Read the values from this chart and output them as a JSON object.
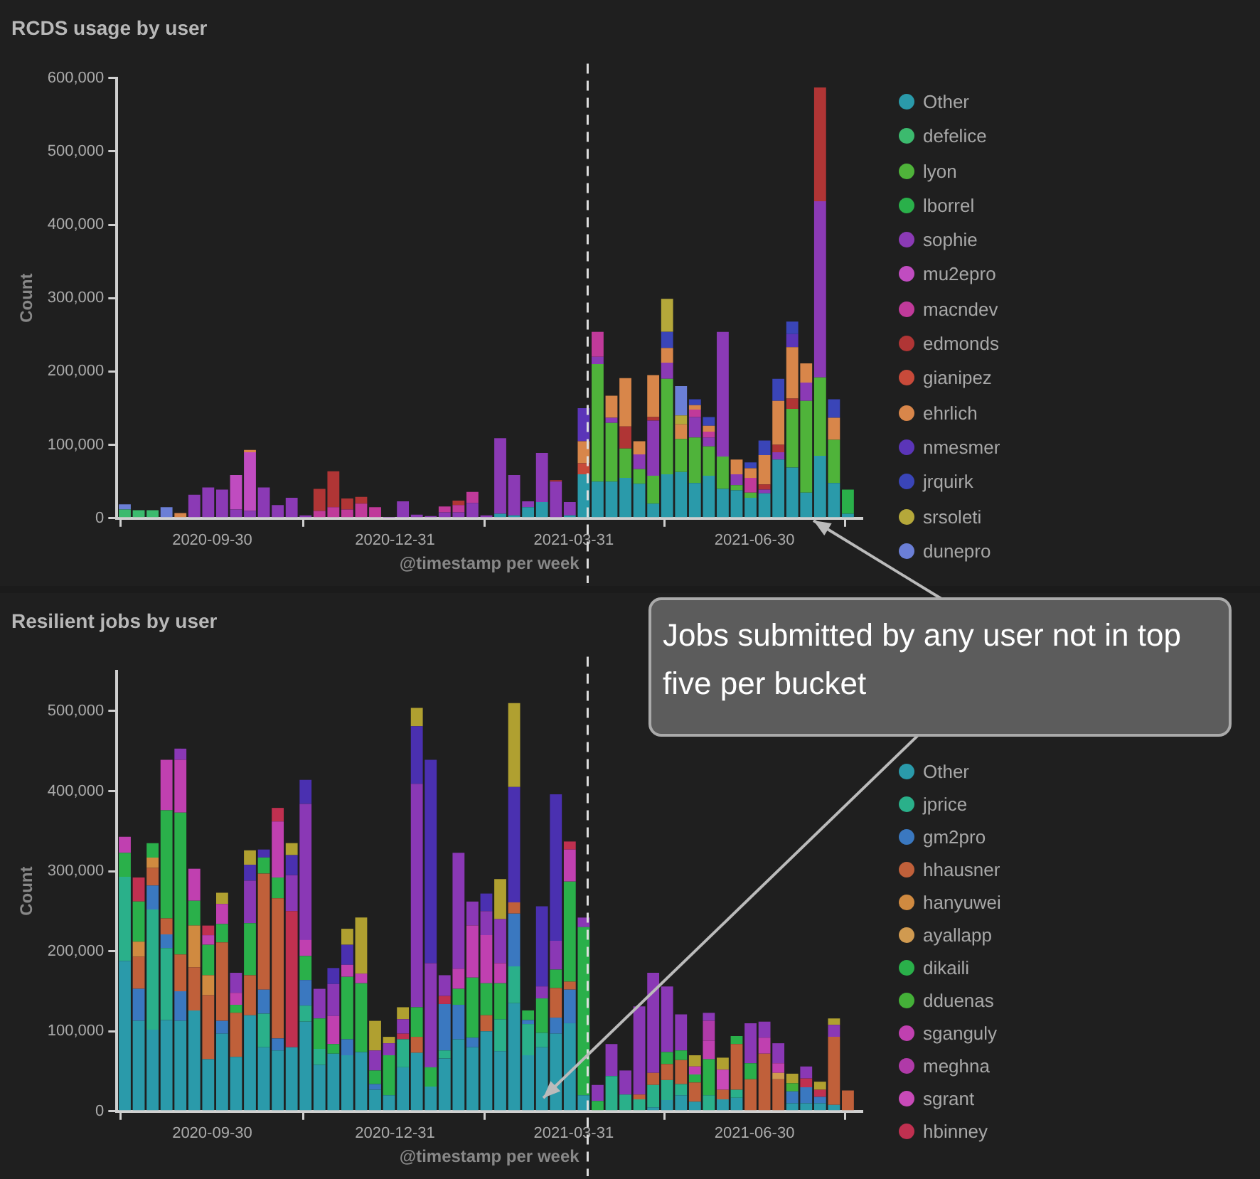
{
  "chart_data": [
    {
      "type": "bar",
      "stacked": true,
      "title": "RCDS usage by user",
      "xlabel": "@timestamp per week",
      "ylabel": "Count",
      "legend": "right",
      "x": [
        "2020-08-17",
        "2020-08-24",
        "2020-08-31",
        "2020-09-07",
        "2020-09-14",
        "2020-09-21",
        "2020-09-28",
        "2020-10-05",
        "2020-10-12",
        "2020-10-19",
        "2020-10-26",
        "2020-11-02",
        "2020-11-09",
        "2020-11-16",
        "2020-11-23",
        "2020-11-30",
        "2020-12-07",
        "2020-12-14",
        "2020-12-21",
        "2020-12-28",
        "2021-01-04",
        "2021-01-11",
        "2021-01-18",
        "2021-01-25",
        "2021-02-01",
        "2021-02-08",
        "2021-02-15",
        "2021-02-22",
        "2021-03-01",
        "2021-03-08",
        "2021-03-15",
        "2021-03-22",
        "2021-03-29",
        "2021-04-05",
        "2021-04-12",
        "2021-04-19",
        "2021-04-26",
        "2021-05-03",
        "2021-05-10",
        "2021-05-17",
        "2021-05-24",
        "2021-05-31",
        "2021-06-07",
        "2021-06-14",
        "2021-06-21",
        "2021-06-28",
        "2021-07-05",
        "2021-07-12",
        "2021-07-19",
        "2021-07-26",
        "2021-08-02",
        "2021-08-09",
        "2021-08-16"
      ],
      "xlim": [
        "2020-08-13",
        "2021-08-23"
      ],
      "xticks": [
        "2020-09-30",
        "2020-12-31",
        "2021-03-31",
        "2021-06-30"
      ],
      "ylim": [
        0,
        600000
      ],
      "yticks": [
        {
          "value": 0,
          "label": "0"
        },
        {
          "value": 100000,
          "label": "100,000"
        },
        {
          "value": 200000,
          "label": "200,000"
        },
        {
          "value": 300000,
          "label": "300,000"
        },
        {
          "value": 400000,
          "label": "400,000"
        },
        {
          "value": 500000,
          "label": "500,000"
        },
        {
          "value": 600000,
          "label": "600,000"
        }
      ],
      "ref_lines": [
        {
          "axis": "x",
          "value": "2021-04-07",
          "line_style": "dashed",
          "color": "#dddddd"
        }
      ],
      "annotations": [
        "Jobs submitted by any user not in top five per bucket"
      ],
      "series": [
        {
          "name": "Other",
          "color": "#2a9aaa",
          "values": [
            null,
            null,
            null,
            null,
            null,
            null,
            null,
            null,
            null,
            null,
            null,
            null,
            null,
            null,
            null,
            null,
            null,
            null,
            null,
            null,
            null,
            null,
            null,
            null,
            null,
            null,
            null,
            6000,
            4000,
            15000,
            22000,
            null,
            4000,
            60000,
            50000,
            50000,
            55000,
            47000,
            20000,
            60000,
            63000,
            48000,
            58000,
            40000,
            38000,
            28000,
            34000,
            80000,
            69000,
            35000,
            85000,
            48000,
            6000
          ]
        },
        {
          "name": "defelice",
          "color": "#3cba6e",
          "values": [
            12000,
            11000,
            11000,
            null,
            null,
            null,
            null,
            null,
            null,
            null,
            null,
            null,
            null,
            null,
            null,
            null,
            null,
            null,
            null,
            null,
            null,
            null,
            null,
            null,
            null,
            null,
            null,
            null,
            null,
            null,
            null,
            null,
            null,
            null,
            null,
            null,
            null,
            null,
            null,
            null,
            null,
            null,
            null,
            null,
            null,
            null,
            null,
            null,
            null,
            null,
            null,
            null,
            null
          ]
        },
        {
          "name": "lyon",
          "color": "#4fb33a",
          "values": [
            null,
            null,
            null,
            null,
            null,
            null,
            null,
            null,
            null,
            null,
            null,
            null,
            null,
            null,
            null,
            null,
            null,
            null,
            null,
            null,
            null,
            null,
            null,
            null,
            null,
            null,
            null,
            null,
            null,
            null,
            null,
            null,
            null,
            null,
            160000,
            80000,
            40000,
            20000,
            38000,
            130000,
            45000,
            62000,
            40000,
            44000,
            7000,
            7000,
            null,
            null,
            80000,
            125000,
            107000,
            59000,
            null
          ]
        },
        {
          "name": "lborrel",
          "color": "#2ab04a",
          "values": [
            null,
            null,
            null,
            null,
            null,
            null,
            null,
            null,
            null,
            null,
            null,
            null,
            null,
            null,
            null,
            null,
            null,
            null,
            null,
            null,
            null,
            null,
            null,
            null,
            null,
            null,
            null,
            null,
            null,
            null,
            null,
            null,
            null,
            null,
            null,
            null,
            null,
            null,
            null,
            null,
            null,
            null,
            null,
            null,
            null,
            null,
            null,
            null,
            null,
            null,
            null,
            null,
            33000
          ]
        },
        {
          "name": "sophie",
          "color": "#8b3ab5",
          "values": [
            null,
            null,
            null,
            null,
            null,
            32000,
            42000,
            39000,
            12000,
            10000,
            42000,
            18000,
            28000,
            4000,
            null,
            null,
            null,
            null,
            null,
            1000,
            23000,
            5000,
            3000,
            8000,
            8000,
            21000,
            4000,
            103000,
            55000,
            8000,
            67000,
            50000,
            18000,
            null,
            10000,
            7000,
            null,
            20000,
            75000,
            22000,
            null,
            28000,
            12000,
            170000,
            15000,
            null,
            5000,
            10000,
            null,
            25000,
            240000,
            null,
            null
          ]
        },
        {
          "name": "mu2epro",
          "color": "#c04cc0",
          "values": [
            null,
            null,
            null,
            null,
            null,
            null,
            null,
            null,
            47000,
            80000,
            null,
            null,
            null,
            null,
            null,
            null,
            null,
            null,
            null,
            null,
            null,
            null,
            null,
            null,
            null,
            null,
            null,
            null,
            null,
            null,
            null,
            null,
            null,
            null,
            null,
            null,
            null,
            null,
            null,
            null,
            null,
            null,
            null,
            null,
            null,
            null,
            null,
            null,
            null,
            null,
            null,
            null,
            null
          ]
        },
        {
          "name": "macndev",
          "color": "#c03a9a",
          "values": [
            null,
            null,
            null,
            null,
            null,
            null,
            null,
            null,
            null,
            null,
            null,
            null,
            null,
            null,
            10000,
            15000,
            12000,
            20000,
            15000,
            null,
            null,
            null,
            null,
            8000,
            10000,
            15000,
            null,
            null,
            null,
            null,
            null,
            null,
            null,
            null,
            34000,
            null,
            null,
            null,
            null,
            null,
            null,
            10000,
            8000,
            null,
            null,
            20000,
            null,
            null,
            null,
            null,
            null,
            null,
            null
          ]
        },
        {
          "name": "edmonds",
          "color": "#b03535",
          "values": [
            null,
            null,
            null,
            null,
            null,
            null,
            null,
            null,
            null,
            null,
            null,
            null,
            null,
            null,
            30000,
            49000,
            15000,
            9000,
            null,
            null,
            null,
            null,
            null,
            null,
            6000,
            null,
            null,
            null,
            null,
            null,
            null,
            2000,
            null,
            null,
            null,
            null,
            30000,
            null,
            5000,
            null,
            null,
            null,
            null,
            null,
            null,
            null,
            7000,
            10000,
            14000,
            null,
            155000,
            null,
            null
          ]
        },
        {
          "name": "gianipez",
          "color": "#c84a3a",
          "values": [
            null,
            null,
            null,
            null,
            null,
            null,
            null,
            null,
            null,
            null,
            null,
            null,
            null,
            null,
            null,
            null,
            null,
            null,
            null,
            null,
            null,
            null,
            null,
            null,
            null,
            null,
            null,
            null,
            null,
            null,
            null,
            null,
            null,
            15000,
            null,
            null,
            null,
            null,
            null,
            null,
            null,
            null,
            null,
            null,
            null,
            null,
            null,
            null,
            null,
            null,
            null,
            null,
            null
          ]
        },
        {
          "name": "ehrlich",
          "color": "#d8864a",
          "values": [
            null,
            null,
            null,
            null,
            7000,
            null,
            null,
            null,
            null,
            3000,
            null,
            null,
            null,
            null,
            null,
            null,
            null,
            null,
            null,
            null,
            null,
            null,
            null,
            null,
            null,
            null,
            null,
            null,
            null,
            null,
            null,
            null,
            null,
            30000,
            null,
            30000,
            66000,
            18000,
            57000,
            20000,
            20000,
            6000,
            8000,
            null,
            20000,
            13000,
            40000,
            60000,
            70000,
            26000,
            null,
            30000,
            null
          ]
        },
        {
          "name": "nmesmer",
          "color": "#5b35b8",
          "values": [
            null,
            null,
            null,
            null,
            null,
            null,
            null,
            null,
            null,
            null,
            null,
            null,
            null,
            null,
            null,
            null,
            null,
            null,
            null,
            null,
            null,
            null,
            null,
            null,
            null,
            null,
            null,
            null,
            null,
            null,
            null,
            null,
            null,
            45000,
            null,
            null,
            null,
            null,
            null,
            null,
            null,
            null,
            null,
            null,
            null,
            null,
            null,
            null,
            18000,
            null,
            null,
            null,
            null
          ]
        },
        {
          "name": "jrquirk",
          "color": "#3a45b8",
          "values": [
            null,
            null,
            null,
            null,
            null,
            null,
            null,
            null,
            null,
            null,
            null,
            null,
            null,
            null,
            null,
            null,
            null,
            null,
            null,
            null,
            null,
            null,
            null,
            null,
            null,
            null,
            null,
            null,
            null,
            null,
            null,
            null,
            null,
            null,
            null,
            null,
            null,
            null,
            null,
            22000,
            null,
            8000,
            12000,
            null,
            null,
            8000,
            20000,
            30000,
            17000,
            null,
            null,
            25000,
            null
          ]
        },
        {
          "name": "srsoleti",
          "color": "#b5a83a",
          "values": [
            null,
            null,
            null,
            null,
            null,
            null,
            null,
            null,
            null,
            null,
            null,
            null,
            null,
            null,
            null,
            null,
            null,
            null,
            null,
            null,
            null,
            null,
            null,
            null,
            null,
            null,
            null,
            null,
            null,
            null,
            null,
            null,
            null,
            null,
            null,
            null,
            null,
            null,
            null,
            45000,
            12000,
            null,
            null,
            null,
            null,
            null,
            null,
            null,
            null,
            null,
            null,
            null,
            null
          ]
        },
        {
          "name": "dunepro",
          "color": "#6b7fd6",
          "values": [
            7000,
            null,
            null,
            15000,
            null,
            null,
            null,
            null,
            null,
            null,
            null,
            null,
            null,
            null,
            null,
            null,
            null,
            null,
            null,
            null,
            null,
            null,
            null,
            null,
            null,
            null,
            null,
            null,
            null,
            null,
            null,
            null,
            null,
            null,
            null,
            null,
            null,
            null,
            null,
            null,
            40000,
            null,
            null,
            null,
            null,
            null,
            null,
            null,
            null,
            null,
            null,
            null,
            null
          ]
        }
      ]
    },
    {
      "type": "bar",
      "stacked": true,
      "title": "Resilient jobs by user",
      "xlabel": "@timestamp per week",
      "ylabel": "Count",
      "legend": "right",
      "x": [
        "2020-08-17",
        "2020-08-24",
        "2020-08-31",
        "2020-09-07",
        "2020-09-14",
        "2020-09-21",
        "2020-09-28",
        "2020-10-05",
        "2020-10-12",
        "2020-10-19",
        "2020-10-26",
        "2020-11-02",
        "2020-11-09",
        "2020-11-16",
        "2020-11-23",
        "2020-11-30",
        "2020-12-07",
        "2020-12-14",
        "2020-12-21",
        "2020-12-28",
        "2021-01-04",
        "2021-01-11",
        "2021-01-18",
        "2021-01-25",
        "2021-02-01",
        "2021-02-08",
        "2021-02-15",
        "2021-02-22",
        "2021-03-01",
        "2021-03-08",
        "2021-03-15",
        "2021-03-22",
        "2021-03-29",
        "2021-04-05",
        "2021-04-12",
        "2021-04-19",
        "2021-04-26",
        "2021-05-03",
        "2021-05-10",
        "2021-05-17",
        "2021-05-24",
        "2021-05-31",
        "2021-06-07",
        "2021-06-14",
        "2021-06-21",
        "2021-06-28",
        "2021-07-05",
        "2021-07-12",
        "2021-07-19",
        "2021-07-26",
        "2021-08-02",
        "2021-08-09",
        "2021-08-16"
      ],
      "xlim": [
        "2020-08-13",
        "2021-08-23"
      ],
      "xticks": [
        "2020-09-30",
        "2020-12-31",
        "2021-03-31",
        "2021-06-30"
      ],
      "ylim": [
        0,
        550000
      ],
      "yticks": [
        {
          "value": 0,
          "label": "0"
        },
        {
          "value": 100000,
          "label": "100,000"
        },
        {
          "value": 200000,
          "label": "200,000"
        },
        {
          "value": 300000,
          "label": "300,000"
        },
        {
          "value": 400000,
          "label": "400,000"
        },
        {
          "value": 500000,
          "label": "500,000"
        }
      ],
      "ref_lines": [
        {
          "axis": "x",
          "value": "2021-04-07",
          "line_style": "dashed",
          "color": "#dddddd"
        }
      ],
      "series": [
        {
          "name": "Other",
          "color": "#2a9aaa",
          "values": [
            188000,
            113000,
            102000,
            114000,
            113000,
            126000,
            65000,
            97000,
            68000,
            120000,
            80000,
            76000,
            80000,
            112000,
            58000,
            72000,
            70000,
            74000,
            27000,
            20000,
            55000,
            73000,
            31000,
            66000,
            90000,
            80000,
            100000,
            75000,
            135000,
            70000,
            80000,
            97000,
            110000,
            20000,
            null,
            null,
            null,
            null,
            5000,
            14000,
            20000,
            12000,
            null,
            15000,
            17000,
            null,
            null,
            null,
            10000,
            10000,
            10000,
            8000,
            null
          ]
        },
        {
          "name": "jprice",
          "color": "#2ab08a",
          "values": [
            105000,
            null,
            150000,
            90000,
            null,
            null,
            null,
            null,
            null,
            null,
            42000,
            null,
            null,
            20000,
            20000,
            null,
            null,
            null,
            null,
            null,
            35000,
            null,
            null,
            10000,
            null,
            null,
            null,
            40000,
            46000,
            39000,
            18000,
            null,
            null,
            null,
            null,
            44000,
            21000,
            15000,
            28000,
            25000,
            14000,
            null,
            20000,
            null,
            10000,
            null,
            null,
            null,
            null,
            null,
            null,
            null,
            null
          ]
        },
        {
          "name": "gm2pro",
          "color": "#3a78c0",
          "values": [
            null,
            40000,
            30000,
            17000,
            37000,
            null,
            null,
            16000,
            null,
            null,
            30000,
            15000,
            null,
            32000,
            null,
            null,
            20000,
            null,
            7000,
            null,
            null,
            null,
            null,
            58000,
            43000,
            12000,
            null,
            null,
            66000,
            5000,
            null,
            20000,
            42000,
            null,
            null,
            null,
            null,
            null,
            null,
            null,
            null,
            null,
            null,
            null,
            null,
            null,
            null,
            null,
            15000,
            20000,
            8000,
            null,
            null
          ]
        },
        {
          "name": "hhausner",
          "color": "#c0603a",
          "values": [
            null,
            40000,
            22000,
            20000,
            46000,
            54000,
            80000,
            98000,
            55000,
            50000,
            145000,
            175000,
            null,
            null,
            null,
            null,
            null,
            null,
            null,
            null,
            null,
            20000,
            null,
            null,
            null,
            null,
            20000,
            null,
            14000,
            null,
            null,
            37000,
            10000,
            null,
            null,
            null,
            null,
            6000,
            15000,
            20000,
            30000,
            24000,
            null,
            12000,
            57000,
            40000,
            72000,
            40000,
            null,
            null,
            null,
            85000,
            26000
          ]
        },
        {
          "name": "hanyuwei",
          "color": "#d08a40",
          "values": [
            null,
            19000,
            13000,
            null,
            null,
            52000,
            25000,
            null,
            null,
            null,
            null,
            null,
            null,
            null,
            null,
            null,
            null,
            null,
            null,
            null,
            null,
            null,
            null,
            null,
            null,
            null,
            null,
            null,
            null,
            null,
            null,
            null,
            null,
            null,
            null,
            null,
            null,
            null,
            null,
            null,
            null,
            null,
            null,
            null,
            null,
            null,
            null,
            null,
            null,
            null,
            null,
            null,
            null
          ]
        },
        {
          "name": "ayallapp",
          "color": "#d09a50",
          "values": [
            null,
            null,
            null,
            null,
            null,
            null,
            null,
            null,
            null,
            null,
            null,
            null,
            null,
            null,
            null,
            null,
            null,
            null,
            null,
            null,
            null,
            null,
            null,
            null,
            null,
            null,
            null,
            null,
            null,
            null,
            null,
            null,
            null,
            null,
            null,
            null,
            null,
            null,
            null,
            null,
            null,
            null,
            null,
            null,
            null,
            null,
            null,
            8000,
            null,
            null,
            null,
            null,
            null
          ]
        },
        {
          "name": "dikaili",
          "color": "#2ab04a",
          "values": [
            30000,
            50000,
            18000,
            135000,
            177000,
            31000,
            38000,
            23000,
            10000,
            65000,
            20000,
            26000,
            null,
            30000,
            38000,
            12000,
            78000,
            86000,
            17000,
            50000,
            null,
            37000,
            24000,
            null,
            20000,
            75000,
            40000,
            45000,
            null,
            12000,
            43000,
            23000,
            125000,
            210000,
            13000,
            null,
            null,
            null,
            null,
            15000,
            12000,
            10000,
            45000,
            null,
            10000,
            20000,
            null,
            null,
            null,
            null,
            null,
            null,
            null
          ]
        },
        {
          "name": "dduenas",
          "color": "#44b038",
          "values": [
            null,
            null,
            null,
            null,
            null,
            null,
            null,
            null,
            null,
            null,
            null,
            null,
            null,
            null,
            null,
            null,
            null,
            null,
            null,
            null,
            null,
            null,
            null,
            null,
            null,
            null,
            null,
            null,
            null,
            null,
            null,
            null,
            null,
            null,
            null,
            null,
            null,
            null,
            null,
            null,
            null,
            null,
            null,
            null,
            null,
            null,
            null,
            null,
            10000,
            null,
            null,
            null,
            null
          ]
        },
        {
          "name": "sganguly",
          "color": "#c040b0",
          "values": [
            20000,
            null,
            null,
            63000,
            66000,
            40000,
            12000,
            25000,
            15000,
            null,
            null,
            70000,
            null,
            20000,
            null,
            35000,
            15000,
            12000,
            null,
            null,
            null,
            null,
            null,
            null,
            25000,
            65000,
            60000,
            25000,
            null,
            null,
            null,
            null,
            40000,
            null,
            null,
            null,
            null,
            null,
            null,
            null,
            null,
            10000,
            23000,
            null,
            null,
            null,
            20000,
            12000,
            null,
            null,
            null,
            null,
            null
          ]
        },
        {
          "name": "meghna",
          "color": "#b03aa8",
          "values": [
            null,
            null,
            null,
            null,
            null,
            null,
            null,
            null,
            null,
            null,
            null,
            null,
            null,
            null,
            null,
            null,
            null,
            null,
            null,
            null,
            null,
            null,
            null,
            null,
            null,
            null,
            null,
            null,
            null,
            null,
            null,
            null,
            null,
            null,
            null,
            null,
            null,
            null,
            null,
            null,
            null,
            null,
            25000,
            null,
            null,
            null,
            null,
            null,
            null,
            null,
            null,
            null,
            null
          ]
        },
        {
          "name": "sgrant",
          "color": "#c84ab8",
          "values": [
            null,
            null,
            null,
            null,
            null,
            null,
            null,
            null,
            null,
            null,
            null,
            null,
            null,
            null,
            null,
            null,
            null,
            null,
            null,
            null,
            null,
            null,
            null,
            null,
            null,
            null,
            null,
            null,
            null,
            null,
            null,
            null,
            null,
            null,
            null,
            null,
            null,
            null,
            null,
            null,
            null,
            null,
            null,
            25000,
            null,
            null,
            null,
            null,
            null,
            null,
            null,
            null,
            null
          ]
        },
        {
          "name": "hbinney",
          "color": "#c03050",
          "values": [
            null,
            30000,
            null,
            null,
            null,
            null,
            12000,
            null,
            null,
            null,
            null,
            17000,
            170000,
            null,
            null,
            null,
            null,
            null,
            null,
            null,
            7000,
            null,
            null,
            10000,
            null,
            null,
            null,
            null,
            null,
            null,
            null,
            null,
            10000,
            null,
            null,
            null,
            null,
            null,
            null,
            null,
            null,
            null,
            null,
            null,
            null,
            null,
            null,
            null,
            null,
            11000,
            9000,
            null,
            null
          ]
        },
        {
          "color": "#8a38b5",
          "values": [
            null,
            null,
            null,
            null,
            14000,
            null,
            null,
            null,
            25000,
            53000,
            null,
            null,
            45000,
            170000,
            37000,
            40000,
            null,
            null,
            25000,
            15000,
            18000,
            279000,
            130000,
            26000,
            145000,
            30000,
            30000,
            55000,
            null,
            null,
            15000,
            36000,
            null,
            12000,
            20000,
            40000,
            30000,
            110000,
            125000,
            82000,
            45000,
            null,
            10000,
            null,
            null,
            50000,
            20000,
            25000,
            null,
            15000,
            null,
            15000,
            null
          ]
        },
        {
          "color": "#4a30b0",
          "values": [
            null,
            null,
            null,
            null,
            null,
            null,
            null,
            null,
            null,
            20000,
            10000,
            null,
            25000,
            30000,
            null,
            20000,
            25000,
            null,
            null,
            null,
            null,
            72000,
            254000,
            null,
            null,
            null,
            22000,
            null,
            144000,
            null,
            100000,
            183000,
            null,
            null,
            null,
            null,
            null,
            null,
            null,
            null,
            null,
            null,
            null,
            null,
            null,
            null,
            null,
            null,
            null,
            null,
            null,
            null,
            null
          ]
        },
        {
          "color": "#b0a030",
          "values": [
            null,
            null,
            null,
            null,
            null,
            null,
            null,
            14000,
            null,
            18000,
            null,
            null,
            15000,
            null,
            null,
            null,
            20000,
            70000,
            37000,
            8000,
            15000,
            23000,
            null,
            null,
            null,
            null,
            null,
            50000,
            105000,
            null,
            null,
            null,
            null,
            null,
            null,
            null,
            null,
            null,
            null,
            null,
            null,
            14000,
            null,
            15000,
            null,
            null,
            null,
            null,
            12000,
            null,
            10000,
            8000,
            null
          ]
        }
      ]
    }
  ]
}
